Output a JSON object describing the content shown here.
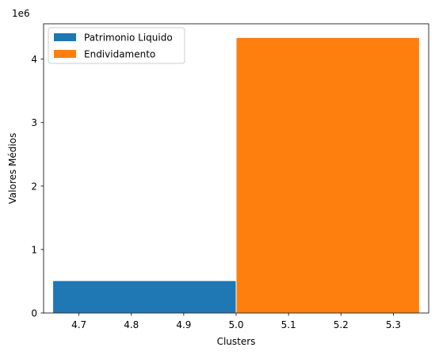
{
  "chart_data": {
    "type": "bar",
    "xlabel": "Clusters",
    "ylabel": "Valores Médios",
    "y_scale_label": "1e6",
    "y_scale": 1000000,
    "xlim": [
      4.6325,
      5.3675
    ],
    "ylim": [
      0,
      4557000
    ],
    "x_ticks": [
      4.7,
      4.8,
      4.9,
      5.0,
      5.1,
      5.2,
      5.3
    ],
    "x_tick_labels": [
      "4.7",
      "4.8",
      "4.9",
      "5.0",
      "5.1",
      "5.2",
      "5.3"
    ],
    "y_ticks": [
      0,
      1000000,
      2000000,
      3000000,
      4000000
    ],
    "y_tick_labels": [
      "0",
      "1",
      "2",
      "3",
      "4"
    ],
    "grid": false,
    "legend_position": "upper-left",
    "series": [
      {
        "name": "Patrimonio Liquido",
        "color": "#1f77b4",
        "bars": [
          {
            "x_start": 4.65,
            "x_end": 5.0,
            "value": 510000
          }
        ]
      },
      {
        "name": "Endividamento",
        "color": "#ff7f0e",
        "bars": [
          {
            "x_start": 5.0,
            "x_end": 5.35,
            "value": 4340000
          }
        ]
      }
    ]
  }
}
